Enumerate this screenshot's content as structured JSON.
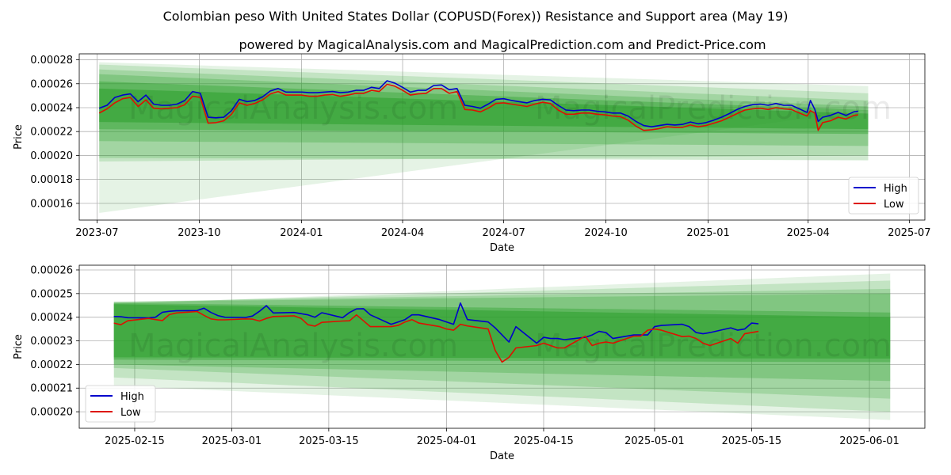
{
  "title": "Colombian peso With United States Dollar (COPUSD(Forex)) Resistance and Support area (May 19)",
  "subtitle": "powered by MagicalAnalysis.com and MagicalPrediction.com and Predict-Price.com",
  "watermarks": [
    "MagicalAnalysis.com",
    "MagicalPrediction.com"
  ],
  "colors": {
    "high": "#0000cc",
    "low": "#dd1100",
    "band": "#2ca02c",
    "grid": "#b0b0b0"
  },
  "chart_data": [
    {
      "type": "line",
      "xlabel": "Date",
      "ylabel": "Price",
      "grid": true,
      "legend_placement": "lower-right",
      "xlim": [
        "2023-06-15",
        "2025-07-15"
      ],
      "ylim": [
        0.000146,
        0.000285
      ],
      "x_ticks": [
        "2023-07",
        "2023-10",
        "2024-01",
        "2024-04",
        "2024-07",
        "2024-10",
        "2025-01",
        "2025-04",
        "2025-07"
      ],
      "x_tick_dates": [
        "2023-07-01",
        "2023-10-01",
        "2024-01-01",
        "2024-04-01",
        "2024-07-01",
        "2024-10-01",
        "2025-01-01",
        "2025-04-01",
        "2025-07-01"
      ],
      "y_ticks": [
        "0.00016",
        "0.00018",
        "0.00020",
        "0.00022",
        "0.00024",
        "0.00026",
        "0.00028"
      ],
      "y_tick_values": [
        0.00016,
        0.00018,
        0.0002,
        0.00022,
        0.00024,
        0.00026,
        0.00028
      ],
      "band_fans": [
        {
          "start": "2023-07-03",
          "end": "2025-05-25",
          "upper": [
            0.000278,
            0.000258
          ],
          "lower": [
            0.000152,
            0.000238
          ]
        },
        {
          "start": "2023-07-03",
          "end": "2025-05-25",
          "upper": [
            0.000276,
            0.000252
          ],
          "lower": [
            0.000195,
            0.0002
          ]
        },
        {
          "start": "2023-07-03",
          "end": "2025-05-25",
          "upper": [
            0.000272,
            0.000246
          ],
          "lower": [
            0.000198,
            0.000196
          ]
        },
        {
          "start": "2023-07-03",
          "end": "2025-05-25",
          "upper": [
            0.000268,
            0.000241
          ],
          "lower": [
            0.000212,
            0.000208
          ]
        },
        {
          "start": "2023-07-03",
          "end": "2025-05-25",
          "upper": [
            0.000262,
            0.000238
          ],
          "lower": [
            0.000222,
            0.000218
          ]
        },
        {
          "start": "2023-07-03",
          "end": "2025-05-25",
          "upper": [
            0.000256,
            0.000235
          ],
          "lower": [
            0.000228,
            0.000222
          ]
        }
      ],
      "x": [
        "2023-07-03",
        "2023-07-10",
        "2023-07-17",
        "2023-07-24",
        "2023-07-31",
        "2023-08-07",
        "2023-08-14",
        "2023-08-21",
        "2023-08-28",
        "2023-09-04",
        "2023-09-11",
        "2023-09-18",
        "2023-09-25",
        "2023-10-02",
        "2023-10-09",
        "2023-10-16",
        "2023-10-23",
        "2023-10-30",
        "2023-11-06",
        "2023-11-13",
        "2023-11-20",
        "2023-11-27",
        "2023-12-04",
        "2023-12-11",
        "2023-12-18",
        "2023-12-25",
        "2024-01-01",
        "2024-01-08",
        "2024-01-15",
        "2024-01-22",
        "2024-01-29",
        "2024-02-05",
        "2024-02-12",
        "2024-02-19",
        "2024-02-26",
        "2024-03-04",
        "2024-03-11",
        "2024-03-18",
        "2024-03-25",
        "2024-04-01",
        "2024-04-08",
        "2024-04-15",
        "2024-04-22",
        "2024-04-29",
        "2024-05-06",
        "2024-05-13",
        "2024-05-20",
        "2024-05-27",
        "2024-06-03",
        "2024-06-10",
        "2024-06-17",
        "2024-06-24",
        "2024-07-01",
        "2024-07-08",
        "2024-07-15",
        "2024-07-22",
        "2024-07-29",
        "2024-08-05",
        "2024-08-12",
        "2024-08-19",
        "2024-08-26",
        "2024-09-02",
        "2024-09-09",
        "2024-09-16",
        "2024-09-23",
        "2024-09-30",
        "2024-10-07",
        "2024-10-14",
        "2024-10-21",
        "2024-10-28",
        "2024-11-04",
        "2024-11-11",
        "2024-11-18",
        "2024-11-25",
        "2024-12-02",
        "2024-12-09",
        "2024-12-16",
        "2024-12-23",
        "2024-12-30",
        "2025-01-06",
        "2025-01-13",
        "2025-01-20",
        "2025-01-27",
        "2025-02-03",
        "2025-02-10",
        "2025-02-17",
        "2025-02-24",
        "2025-03-03",
        "2025-03-10",
        "2025-03-17",
        "2025-03-24",
        "2025-03-31",
        "2025-04-03",
        "2025-04-07",
        "2025-04-10",
        "2025-04-14",
        "2025-04-21",
        "2025-04-28",
        "2025-05-05",
        "2025-05-12",
        "2025-05-16"
      ],
      "series": [
        {
          "name": "High",
          "values": [
            0.0002395,
            0.000242,
            0.0002485,
            0.0002505,
            0.0002515,
            0.000245,
            0.0002505,
            0.000243,
            0.000242,
            0.000242,
            0.000243,
            0.000246,
            0.0002535,
            0.000252,
            0.000232,
            0.0002315,
            0.000232,
            0.0002375,
            0.000247,
            0.000245,
            0.000246,
            0.000249,
            0.000254,
            0.000256,
            0.000253,
            0.000253,
            0.000253,
            0.0002525,
            0.0002525,
            0.000253,
            0.0002535,
            0.0002525,
            0.000253,
            0.0002545,
            0.0002545,
            0.000257,
            0.000256,
            0.0002625,
            0.0002605,
            0.000257,
            0.000253,
            0.0002545,
            0.0002545,
            0.0002585,
            0.000259,
            0.000255,
            0.000256,
            0.000242,
            0.000241,
            0.0002395,
            0.000243,
            0.000247,
            0.0002475,
            0.000246,
            0.000245,
            0.000244,
            0.000246,
            0.000247,
            0.0002465,
            0.000242,
            0.000238,
            0.0002375,
            0.000238,
            0.000238,
            0.000237,
            0.0002365,
            0.0002355,
            0.0002355,
            0.000233,
            0.0002285,
            0.000225,
            0.000224,
            0.000225,
            0.000226,
            0.0002255,
            0.000226,
            0.000228,
            0.0002265,
            0.0002275,
            0.0002295,
            0.000232,
            0.000235,
            0.0002385,
            0.000241,
            0.0002425,
            0.000243,
            0.000242,
            0.0002435,
            0.000242,
            0.000242,
            0.000239,
            0.000236,
            0.000246,
            0.0002385,
            0.0002285,
            0.000232,
            0.0002335,
            0.000236,
            0.0002335,
            0.0002365,
            0.000237
          ]
        },
        {
          "name": "Low",
          "values": [
            0.0002355,
            0.000239,
            0.000244,
            0.0002475,
            0.0002485,
            0.000241,
            0.0002465,
            0.0002395,
            0.000239,
            0.0002395,
            0.00024,
            0.0002425,
            0.0002495,
            0.0002485,
            0.000227,
            0.0002275,
            0.000229,
            0.0002345,
            0.000244,
            0.000242,
            0.0002435,
            0.0002465,
            0.0002515,
            0.0002535,
            0.0002505,
            0.0002505,
            0.0002505,
            0.0002495,
            0.0002495,
            0.0002505,
            0.000251,
            0.0002495,
            0.0002505,
            0.000252,
            0.000252,
            0.0002545,
            0.0002535,
            0.0002595,
            0.000258,
            0.0002545,
            0.0002505,
            0.0002515,
            0.000252,
            0.000256,
            0.000256,
            0.000252,
            0.0002535,
            0.0002385,
            0.000238,
            0.0002365,
            0.0002395,
            0.0002435,
            0.000244,
            0.000243,
            0.000242,
            0.000241,
            0.000243,
            0.0002445,
            0.0002435,
            0.000238,
            0.0002345,
            0.0002345,
            0.0002355,
            0.0002355,
            0.0002345,
            0.000234,
            0.000233,
            0.0002325,
            0.0002295,
            0.0002245,
            0.000221,
            0.0002215,
            0.0002225,
            0.000224,
            0.0002235,
            0.0002235,
            0.0002255,
            0.000224,
            0.000225,
            0.000227,
            0.000229,
            0.000232,
            0.000235,
            0.000238,
            0.000239,
            0.0002395,
            0.0002385,
            0.00024,
            0.000239,
            0.0002385,
            0.0002355,
            0.000233,
            0.0002375,
            0.0002355,
            0.000221,
            0.0002275,
            0.000229,
            0.000232,
            0.0002305,
            0.0002335,
            0.000234
          ]
        }
      ]
    },
    {
      "type": "line",
      "xlabel": "Date",
      "ylabel": "Price",
      "grid": true,
      "legend_placement": "lower-left",
      "xlim": [
        "2025-02-07",
        "2025-06-09"
      ],
      "ylim": [
        0.000193,
        0.000262
      ],
      "x_ticks": [
        "2025-02-15",
        "2025-03-01",
        "2025-03-15",
        "2025-04-01",
        "2025-04-15",
        "2025-05-01",
        "2025-05-15",
        "2025-06-01"
      ],
      "x_tick_dates": [
        "2025-02-15",
        "2025-03-01",
        "2025-03-15",
        "2025-04-01",
        "2025-04-15",
        "2025-05-01",
        "2025-05-15",
        "2025-06-01"
      ],
      "y_ticks": [
        "0.00020",
        "0.00021",
        "0.00022",
        "0.00023",
        "0.00024",
        "0.00025",
        "0.00026"
      ],
      "y_tick_values": [
        0.0002,
        0.00021,
        0.00022,
        0.00023,
        0.00024,
        0.00025,
        0.00026
      ],
      "band_fans": [
        {
          "start": "2025-02-12",
          "end": "2025-06-04",
          "upper": [
            0.0002455,
            0.0002585
          ],
          "lower": [
            0.000211,
            0.0001965
          ]
        },
        {
          "start": "2025-02-12",
          "end": "2025-06-04",
          "upper": [
            0.000246,
            0.0002555
          ],
          "lower": [
            0.0002145,
            0.0002
          ]
        },
        {
          "start": "2025-02-12",
          "end": "2025-06-04",
          "upper": [
            0.0002465,
            0.000252
          ],
          "lower": [
            0.0002185,
            0.0002055
          ]
        },
        {
          "start": "2025-02-12",
          "end": "2025-06-04",
          "upper": [
            0.0002465,
            0.00025
          ],
          "lower": [
            0.00022,
            0.000213
          ]
        },
        {
          "start": "2025-02-12",
          "end": "2025-06-04",
          "upper": [
            0.000246,
            0.000242
          ],
          "lower": [
            0.000222,
            0.000221
          ]
        },
        {
          "start": "2025-02-12",
          "end": "2025-06-04",
          "upper": [
            0.0002455,
            0.00024
          ],
          "lower": [
            0.000223,
            0.0002225
          ]
        }
      ],
      "x": [
        "2025-02-12",
        "2025-02-13",
        "2025-02-14",
        "2025-02-17",
        "2025-02-18",
        "2025-02-19",
        "2025-02-20",
        "2025-02-21",
        "2025-02-24",
        "2025-02-25",
        "2025-02-26",
        "2025-02-27",
        "2025-02-28",
        "2025-03-03",
        "2025-03-04",
        "2025-03-05",
        "2025-03-06",
        "2025-03-07",
        "2025-03-10",
        "2025-03-11",
        "2025-03-12",
        "2025-03-13",
        "2025-03-14",
        "2025-03-17",
        "2025-03-18",
        "2025-03-19",
        "2025-03-20",
        "2025-03-21",
        "2025-03-24",
        "2025-03-25",
        "2025-03-26",
        "2025-03-27",
        "2025-03-28",
        "2025-03-31",
        "2025-04-01",
        "2025-04-02",
        "2025-04-03",
        "2025-04-04",
        "2025-04-07",
        "2025-04-08",
        "2025-04-09",
        "2025-04-10",
        "2025-04-11",
        "2025-04-14",
        "2025-04-15",
        "2025-04-16",
        "2025-04-17",
        "2025-04-18",
        "2025-04-21",
        "2025-04-22",
        "2025-04-23",
        "2025-04-24",
        "2025-04-25",
        "2025-04-28",
        "2025-04-29",
        "2025-04-30",
        "2025-05-01",
        "2025-05-02",
        "2025-05-05",
        "2025-05-06",
        "2025-05-07",
        "2025-05-08",
        "2025-05-09",
        "2025-05-12",
        "2025-05-13",
        "2025-05-14",
        "2025-05-15",
        "2025-05-16"
      ],
      "series": [
        {
          "name": "High",
          "values": [
            0.0002403,
            0.0002402,
            0.0002398,
            0.0002397,
            0.00024,
            0.0002421,
            0.0002425,
            0.0002427,
            0.0002428,
            0.0002438,
            0.000242,
            0.0002407,
            0.00024,
            0.0002399,
            0.0002405,
            0.0002425,
            0.0002449,
            0.0002418,
            0.000242,
            0.0002415,
            0.000241,
            0.00024,
            0.0002419,
            0.0002398,
            0.000242,
            0.0002435,
            0.0002436,
            0.000241,
            0.000237,
            0.000238,
            0.000239,
            0.000241,
            0.000241,
            0.000239,
            0.000238,
            0.000237,
            0.000246,
            0.000239,
            0.000238,
            0.0002355,
            0.0002325,
            0.0002295,
            0.000236,
            0.000229,
            0.0002315,
            0.000231,
            0.000231,
            0.0002305,
            0.0002315,
            0.0002325,
            0.000234,
            0.0002335,
            0.000231,
            0.0002325,
            0.0002325,
            0.0002325,
            0.000236,
            0.0002365,
            0.000237,
            0.000236,
            0.0002335,
            0.000233,
            0.0002335,
            0.0002355,
            0.0002345,
            0.000235,
            0.0002375,
            0.0002372
          ]
        },
        {
          "name": "Low",
          "values": [
            0.0002375,
            0.0002368,
            0.0002385,
            0.0002395,
            0.000239,
            0.0002386,
            0.0002411,
            0.0002418,
            0.0002424,
            0.0002408,
            0.0002393,
            0.0002389,
            0.0002389,
            0.0002393,
            0.0002392,
            0.0002384,
            0.0002395,
            0.0002403,
            0.0002406,
            0.0002395,
            0.0002368,
            0.0002362,
            0.0002378,
            0.0002384,
            0.0002385,
            0.000241,
            0.0002385,
            0.000236,
            0.000236,
            0.0002365,
            0.000238,
            0.000239,
            0.0002375,
            0.000236,
            0.000235,
            0.0002345,
            0.000237,
            0.0002363,
            0.000235,
            0.000226,
            0.000221,
            0.000223,
            0.000227,
            0.000228,
            0.000229,
            0.000228,
            0.000227,
            0.000227,
            0.000232,
            0.000228,
            0.000229,
            0.0002295,
            0.000229,
            0.000232,
            0.000232,
            0.0002345,
            0.000235,
            0.0002345,
            0.0002318,
            0.000232,
            0.000231,
            0.000229,
            0.000228,
            0.000231,
            0.000229,
            0.000233,
            0.0002335,
            0.000234
          ]
        }
      ]
    }
  ]
}
